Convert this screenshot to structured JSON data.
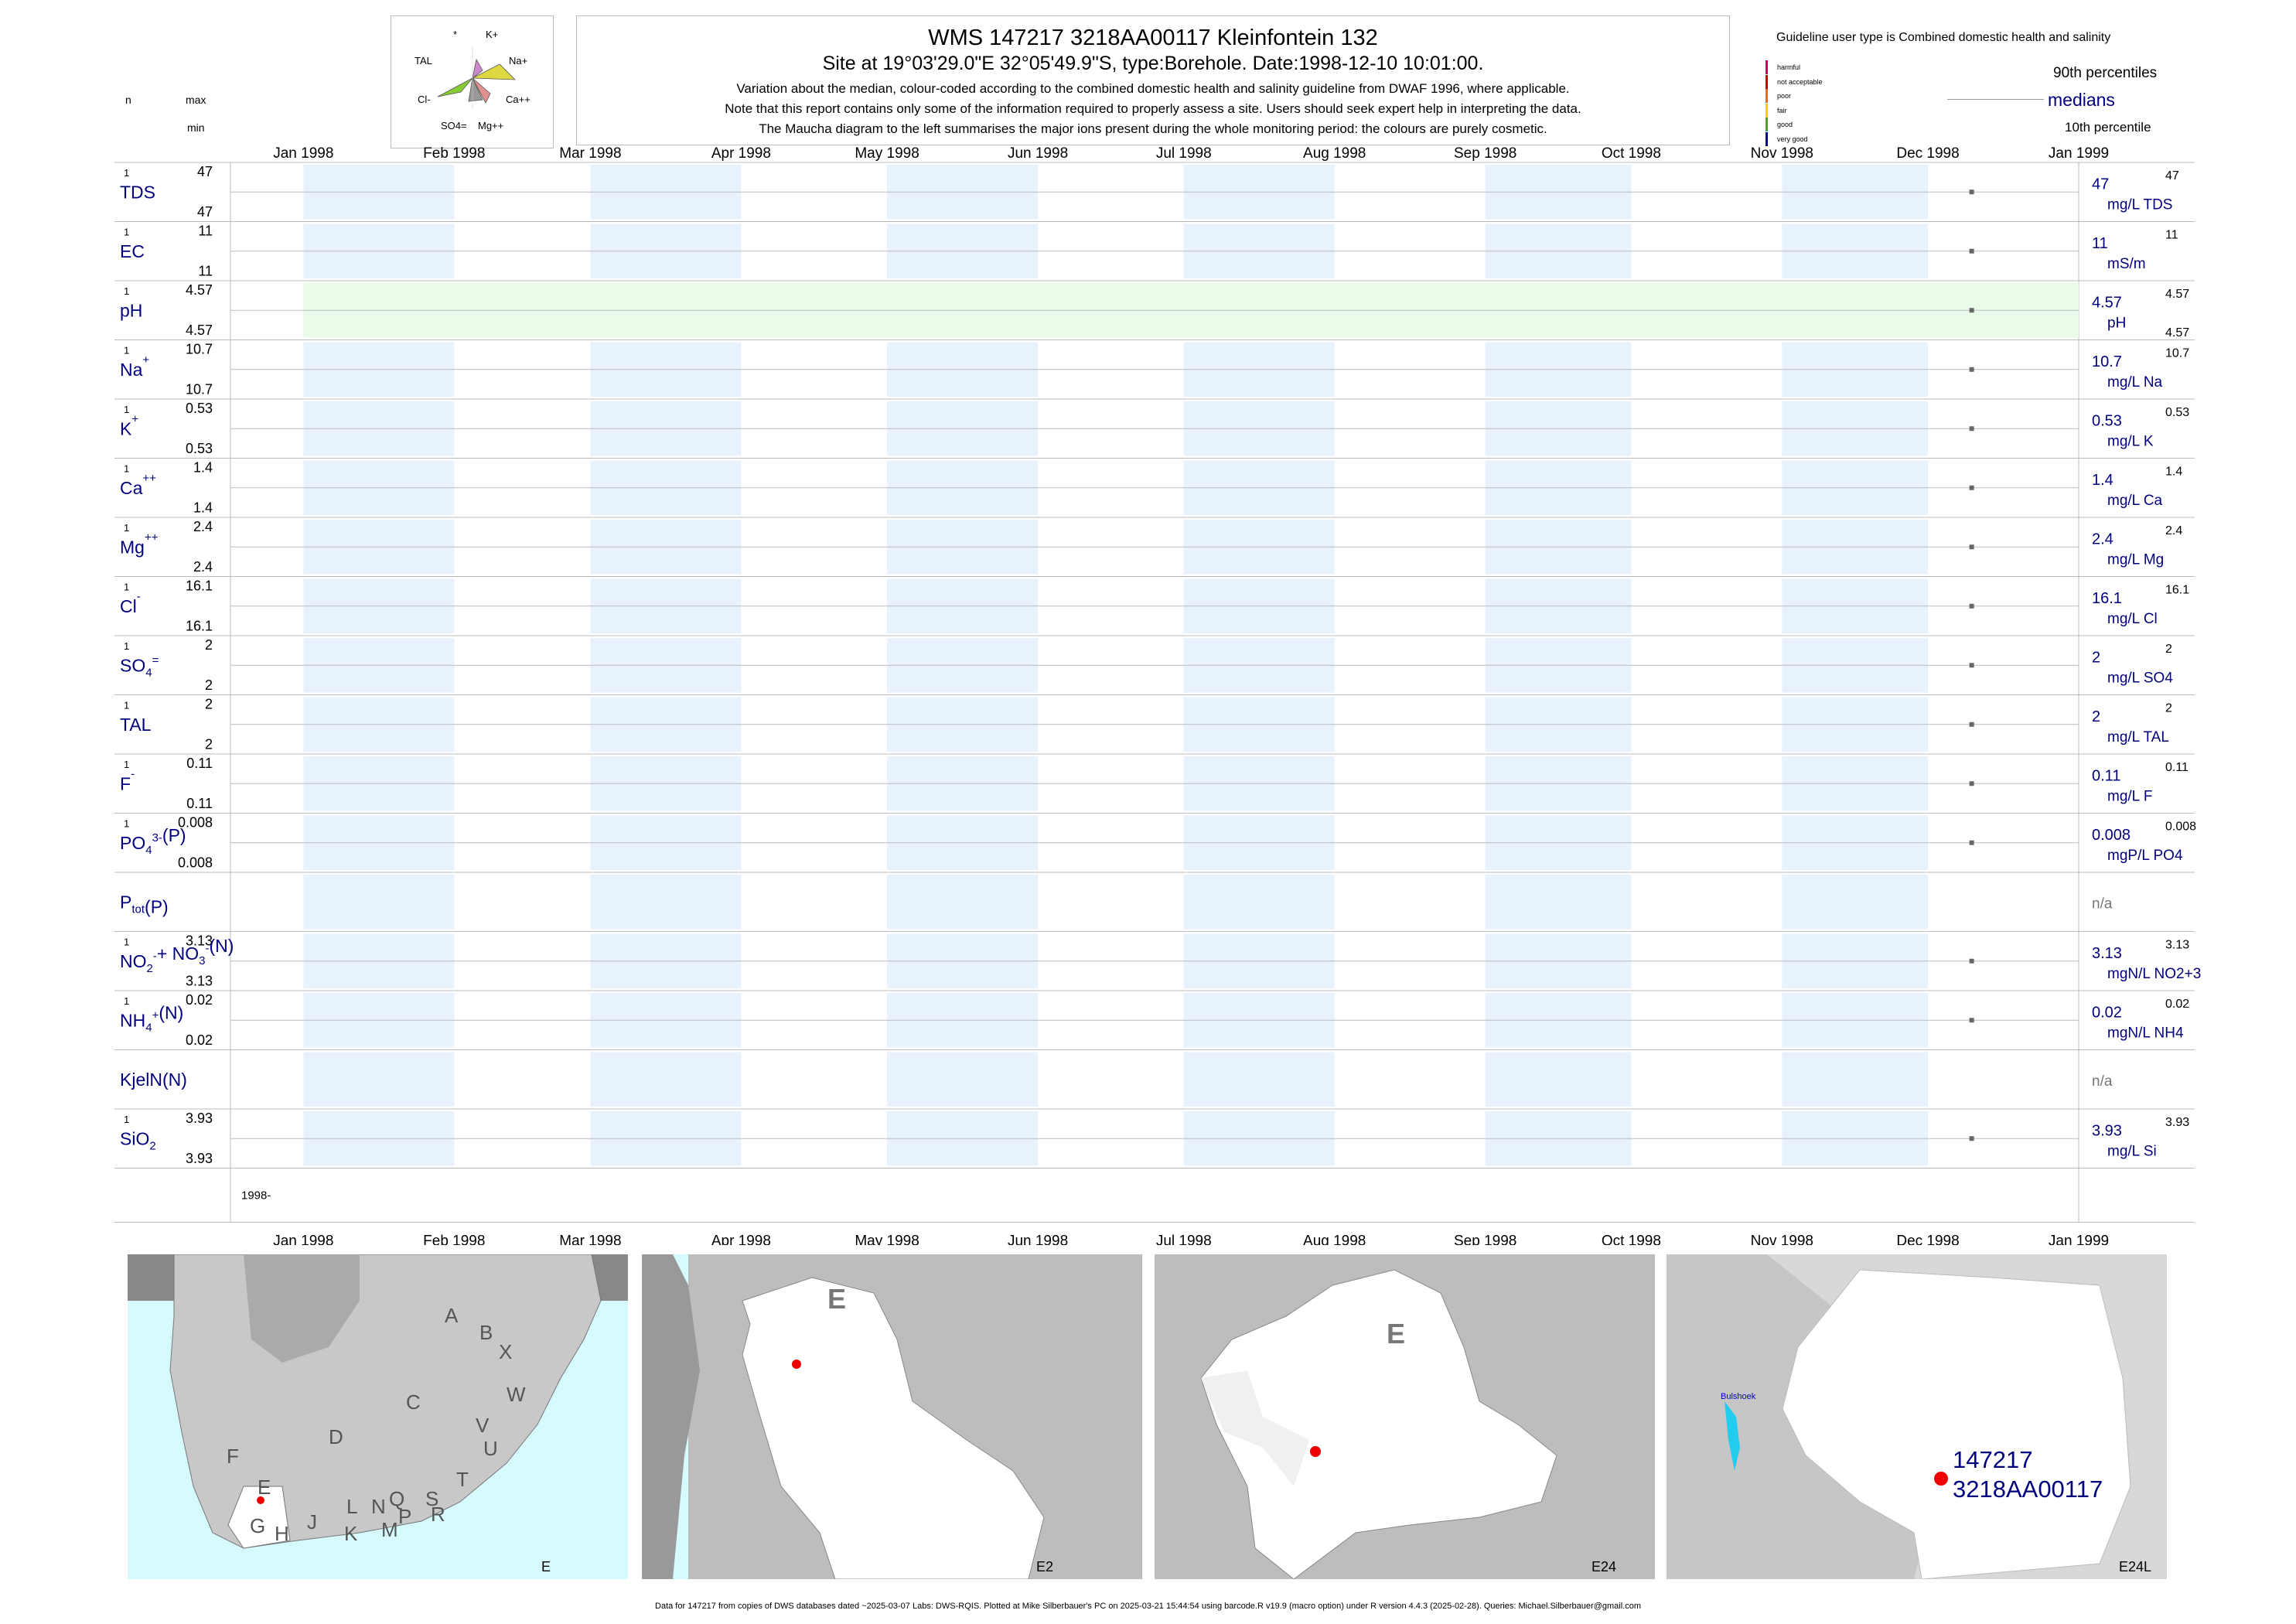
{
  "header": {
    "title": "WMS 147217 3218AA00117 Kleinfontein 132",
    "subtitle": "Site at 19°03'29.0\"E 32°05'49.9\"S, type:Borehole. Date:1998-12-10 10:01:00.",
    "note1": "Variation about the median,  colour-coded according to the combined domestic health and salinity guideline from DWAF 1996, where applicable.",
    "note2": "Note that this report contains only some of the information required to properly assess a site. Users should seek expert help in interpreting the data.",
    "note3": "The Maucha diagram to the left summarises the major ions present during the whole monitoring period: the colours are purely cosmetic."
  },
  "maucha": {
    "labels": {
      "k": "K+",
      "star": "*",
      "tal": "TAL",
      "na": "Na+",
      "cl": "Cl-",
      "ca": "Ca++",
      "so4": "SO4=",
      "mg": "Mg++"
    }
  },
  "legend": {
    "guideline": "Guideline user type is Combined domestic health and salinity",
    "classes": [
      {
        "label": "harmful",
        "color": "#cc0066"
      },
      {
        "label": "not acceptable",
        "color": "#cc0000"
      },
      {
        "label": "poor",
        "color": "#ff6600"
      },
      {
        "label": "fair",
        "color": "#ffcc00"
      },
      {
        "label": "good",
        "color": "#33aa33"
      },
      {
        "label": "very good",
        "color": "#0000aa"
      }
    ],
    "p90": "90th percentiles",
    "medians": "medians",
    "p10": "10th percentile"
  },
  "left_header": {
    "n": "n",
    "max": "max",
    "min": "min"
  },
  "chart_data": {
    "type": "scatter",
    "x_axis": {
      "range": [
        "1997-12-17",
        "1999-01-01"
      ],
      "tick_labels": [
        "Jan 1998",
        "Feb 1998",
        "Mar 1998",
        "Apr 1998",
        "May 1998",
        "Jun 1998",
        "Jul 1998",
        "Aug 1998",
        "Sep 1998",
        "Oct 1998",
        "Nov 1998",
        "Dec 1998",
        "Jan 1999"
      ],
      "year_label": "1998-"
    },
    "sample_date": "1998-12-10",
    "panels": [
      {
        "name": "TDS",
        "n": "1",
        "max": "47",
        "min": "47",
        "value": "47",
        "unit": "mg/L TDS",
        "p90": "47",
        "p10": "",
        "shade": "blue"
      },
      {
        "name": "EC",
        "n": "1",
        "max": "11",
        "min": "11",
        "value": "11",
        "unit": "mS/m",
        "p90": "11",
        "p10": "",
        "shade": "blue"
      },
      {
        "name": "pH",
        "n": "1",
        "max": "4.57",
        "min": "4.57",
        "value": "4.57",
        "unit": "pH",
        "p90": "4.57",
        "p10": "4.57",
        "shade": "green"
      },
      {
        "name": "Na",
        "sup": "+",
        "n": "1",
        "max": "10.7",
        "min": "10.7",
        "value": "10.7",
        "unit": "mg/L Na",
        "p90": "10.7",
        "p10": "",
        "shade": "blue"
      },
      {
        "name": "K",
        "sup": "+",
        "n": "1",
        "max": "0.53",
        "min": "0.53",
        "value": "0.53",
        "unit": "mg/L K",
        "p90": "0.53",
        "p10": "",
        "shade": "blue"
      },
      {
        "name": "Ca",
        "sup": "++",
        "n": "1",
        "max": "1.4",
        "min": "1.4",
        "value": "1.4",
        "unit": "mg/L Ca",
        "p90": "1.4",
        "p10": "",
        "shade": "blue"
      },
      {
        "name": "Mg",
        "sup": "++",
        "n": "1",
        "max": "2.4",
        "min": "2.4",
        "value": "2.4",
        "unit": "mg/L Mg",
        "p90": "2.4",
        "p10": "",
        "shade": "blue"
      },
      {
        "name": "Cl",
        "sup": "-",
        "n": "1",
        "max": "16.1",
        "min": "16.1",
        "value": "16.1",
        "unit": "mg/L Cl",
        "p90": "16.1",
        "p10": "",
        "shade": "blue"
      },
      {
        "name": "SO",
        "sub": "4",
        "sup": "=",
        "n": "1",
        "max": "2",
        "min": "2",
        "value": "2",
        "unit": "mg/L SO4",
        "p90": "2",
        "p10": "",
        "shade": "blue"
      },
      {
        "name": "TAL",
        "n": "1",
        "max": "2",
        "min": "2",
        "value": "2",
        "unit": "mg/L TAL",
        "p90": "2",
        "p10": "",
        "shade": "blue"
      },
      {
        "name": "F",
        "sup": "-",
        "n": "1",
        "max": "0.11",
        "min": "0.11",
        "value": "0.11",
        "unit": "mg/L F",
        "p90": "0.11",
        "p10": "",
        "shade": "blue"
      },
      {
        "name": "PO",
        "sub": "4",
        "sup": "3-",
        "suffix": "(P)",
        "n": "1",
        "max": "0.008",
        "min": "0.008",
        "value": "0.008",
        "unit": "mgP/L PO4",
        "p90": "0.008",
        "p10": "",
        "shade": "blue"
      },
      {
        "name": "P",
        "sub": "tot",
        "suffix": "(P)",
        "n": "",
        "max": "",
        "min": "",
        "value": "n/a",
        "unit": "",
        "p90": "",
        "p10": "",
        "shade": "blue",
        "na": true
      },
      {
        "name": "NO",
        "sub": "2",
        "sup": "-",
        "suffix": "+ NO",
        "sub2": "3",
        "sup2": "-",
        "suffix2": "(N)",
        "n": "1",
        "max": "3.13",
        "min": "3.13",
        "value": "3.13",
        "unit": "mgN/L NO2+3",
        "p90": "3.13",
        "p10": "",
        "shade": "blue"
      },
      {
        "name": "NH",
        "sub": "4",
        "sup": "+",
        "suffix": "(N)",
        "n": "1",
        "max": "0.02",
        "min": "0.02",
        "value": "0.02",
        "unit": "mgN/L NH4",
        "p90": "0.02",
        "p10": "",
        "shade": "blue"
      },
      {
        "name": "KjelN(N)",
        "n": "",
        "max": "",
        "min": "",
        "value": "n/a",
        "unit": "",
        "p90": "",
        "p10": "",
        "shade": "blue",
        "na": true
      },
      {
        "name": "SiO",
        "sub": "2",
        "n": "1",
        "max": "3.93",
        "min": "3.93",
        "value": "3.93",
        "unit": "mg/L Si",
        "p90": "3.93",
        "p10": "",
        "shade": "blue"
      }
    ]
  },
  "maps": [
    {
      "label": "E",
      "letters": [
        "A",
        "B",
        "X",
        "W",
        "C",
        "V",
        "U",
        "D",
        "T",
        "F",
        "E",
        "S",
        "R",
        "L",
        "N",
        "Q",
        "P",
        "J",
        "G",
        "H",
        "K",
        "M"
      ]
    },
    {
      "label": "E2",
      "region": "E"
    },
    {
      "label": "E24",
      "region": "E"
    },
    {
      "label": "E24L",
      "town": "Bulshoek",
      "site1": "147217",
      "site2": "3218AA00117"
    }
  ],
  "footer": "Data for 147217 from copies of DWS databases dated ~2025-03-07 Labs: DWS-RQIS. Plotted at Mike Silberbauer's PC on 2025-03-21 15:44:54 using barcode.R v19.9 (macro option) under R version 4.4.3 (2025-02-28). Queries: Michael.Silberbauer@gmail.com",
  "colors": {
    "blue_shade": "#e8f2fc",
    "green_shade": "#ebfbea",
    "label_blue": "#00007f",
    "grid": "#bbbbbb",
    "point": "#666666",
    "map_dark": "#999999",
    "sea": "#d6fbff"
  }
}
